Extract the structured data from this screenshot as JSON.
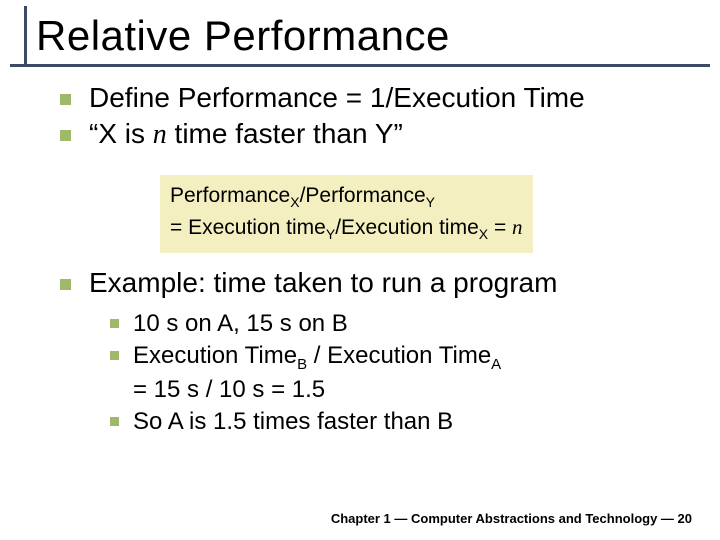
{
  "title": "Relative Performance",
  "bullets_l1": [
    {
      "text": "Define Performance = 1/Execution Time"
    },
    {
      "pre": "“X is ",
      "n": "n",
      "post": " time faster than Y”"
    }
  ],
  "formula": {
    "line1_a": "Performance",
    "line1_subX": "X",
    "line1_slash": "/",
    "line1_b": "Performance",
    "line1_subY": "Y",
    "line2_eq": "= Execution time",
    "line2_subY": "Y",
    "line2_slash": "/",
    "line2_b": "Execution time",
    "line2_subX": "X",
    "line2_eqn": " = ",
    "line2_n": "n",
    "bg_color": "#f4efc0"
  },
  "example_heading": "Example: time taken to run a program",
  "bullets_l2": [
    {
      "text": "10 s on A, 15 s on B"
    },
    {
      "pre": "Execution Time",
      "subB": "B",
      "mid": " / Execution Time",
      "subA": "A",
      "line2": "= 15 s / 10 s = 1.5"
    },
    {
      "text": "So A is 1.5 times faster than B"
    }
  ],
  "footer": {
    "chapter": "Chapter 1 — Computer Abstractions and Technology — 20"
  },
  "colors": {
    "bullet": "#9fb96b",
    "rule": "#3b4b66",
    "background": "#ffffff"
  }
}
